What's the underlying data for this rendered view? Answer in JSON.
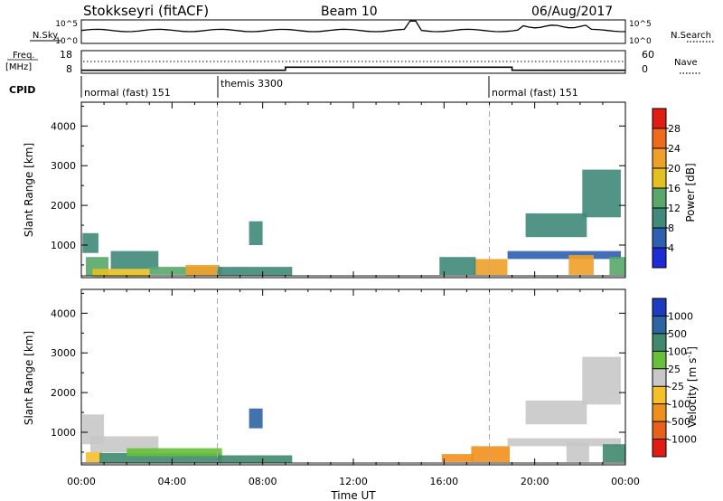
{
  "header": {
    "station": "Stokkseyri (fitACF)",
    "beam": "Beam 10",
    "date": "06/Aug/2017"
  },
  "status_panels": {
    "nsky_label": "N.Sky",
    "nsky_ticks": [
      "10^5",
      "10^0"
    ],
    "nsearch_label": "N.Search",
    "nsearch_ticks": [
      "10^5",
      "10^0"
    ],
    "freq_label_top": "Freq.",
    "freq_label_bottom": "[MHz]",
    "freq_ticks": [
      "18",
      "8"
    ],
    "nave_label": "Nave",
    "nave_ticks": [
      "60",
      "0"
    ],
    "cpid_label": "CPID",
    "cpid_segments": [
      {
        "label": "normal (fast) 151",
        "start_hour": 0,
        "end_hour": 6
      },
      {
        "label": "themis 3300",
        "start_hour": 6,
        "end_hour": 18
      },
      {
        "label": "normal (fast) 151",
        "start_hour": 18,
        "end_hour": 24
      }
    ],
    "nave_steps": [
      {
        "start_hour": 0,
        "end_hour": 9,
        "value": 8
      },
      {
        "start_hour": 9,
        "end_hour": 19,
        "value": 16
      },
      {
        "start_hour": 19,
        "end_hour": 24,
        "value": 8
      }
    ]
  },
  "chart_data": [
    {
      "type": "heatmap",
      "title": "",
      "xlabel": "",
      "ylabel": "Slant Range [km]",
      "xlim": [
        0,
        24
      ],
      "ylim": [
        180,
        4600
      ],
      "yticks": [
        "1000",
        "2000",
        "3000",
        "4000"
      ],
      "colorbar_label": "Power [dB]",
      "colorbar_ticks": [
        "4",
        "8",
        "12",
        "16",
        "20",
        "24",
        "28"
      ],
      "colorbar_range": [
        0,
        30
      ],
      "colors": [
        "#1e2cd6",
        "#2f5fb0",
        "#3f8a7a",
        "#57a86a",
        "#e5c022",
        "#f0a028",
        "#ef6a1c",
        "#e01c14"
      ],
      "patches": [
        {
          "x": [
            0.05,
            0.75
          ],
          "y": [
            800,
            1300
          ],
          "value": 10
        },
        {
          "x": [
            0.2,
            1.2
          ],
          "y": [
            230,
            700
          ],
          "value": 14
        },
        {
          "x": [
            1.3,
            3.4
          ],
          "y": [
            400,
            850
          ],
          "value": 10
        },
        {
          "x": [
            0.5,
            3.0
          ],
          "y": [
            200,
            400
          ],
          "value": 18
        },
        {
          "x": [
            3.0,
            6.2
          ],
          "y": [
            250,
            450
          ],
          "value": 14
        },
        {
          "x": [
            4.6,
            6.1
          ],
          "y": [
            230,
            500
          ],
          "value": 22
        },
        {
          "x": [
            6.0,
            9.3
          ],
          "y": [
            230,
            450
          ],
          "value": 10
        },
        {
          "x": [
            7.4,
            8.0
          ],
          "y": [
            1000,
            1600
          ],
          "value": 10
        },
        {
          "x": [
            17.3,
            18.8
          ],
          "y": [
            250,
            650
          ],
          "value": 22
        },
        {
          "x": [
            15.8,
            17.4
          ],
          "y": [
            250,
            700
          ],
          "value": 8
        },
        {
          "x": [
            18.8,
            23.8
          ],
          "y": [
            650,
            850
          ],
          "value": 7
        },
        {
          "x": [
            19.6,
            22.3
          ],
          "y": [
            1200,
            1800
          ],
          "value": 9
        },
        {
          "x": [
            22.1,
            23.8
          ],
          "y": [
            1700,
            2900
          ],
          "value": 8
        },
        {
          "x": [
            21.5,
            22.6
          ],
          "y": [
            250,
            750
          ],
          "value": 22
        },
        {
          "x": [
            23.3,
            24.0
          ],
          "y": [
            250,
            700
          ],
          "value": 14
        }
      ]
    },
    {
      "type": "heatmap",
      "title": "",
      "xlabel": "Time UT",
      "ylabel": "Slant Range [km]",
      "xlim": [
        0,
        24
      ],
      "ylim": [
        180,
        4600
      ],
      "yticks": [
        "1000",
        "2000",
        "3000",
        "4000"
      ],
      "xticks": [
        "00:00",
        "04:00",
        "08:00",
        "12:00",
        "16:00",
        "20:00",
        "00:00"
      ],
      "colorbar_label": "Velocity [m s^-1]",
      "colorbar_ticks": [
        "1000",
        "500",
        "100",
        "25",
        "-25",
        "-100",
        "-500",
        "-1000"
      ],
      "colorbar_range": [
        -1250,
        1250
      ],
      "colors": [
        "#1a3cc0",
        "#2d64a4",
        "#3f8a6e",
        "#66c03a",
        "#c8c8c8",
        "#f5c02a",
        "#f0901c",
        "#e8601a",
        "#e01c14"
      ],
      "patches": [
        {
          "x": [
            0.05,
            1.0
          ],
          "y": [
            700,
            1450
          ],
          "value": 0
        },
        {
          "x": [
            0.4,
            3.4
          ],
          "y": [
            500,
            900
          ],
          "value": 0
        },
        {
          "x": [
            0.2,
            0.9
          ],
          "y": [
            250,
            500
          ],
          "value": -90
        },
        {
          "x": [
            0.8,
            6.2
          ],
          "y": [
            230,
            480
          ],
          "value": 80
        },
        {
          "x": [
            2.0,
            6.2
          ],
          "y": [
            400,
            600
          ],
          "value": 40
        },
        {
          "x": [
            6.0,
            9.3
          ],
          "y": [
            230,
            420
          ],
          "value": 60
        },
        {
          "x": [
            7.4,
            8.0
          ],
          "y": [
            1100,
            1600
          ],
          "value": 300
        },
        {
          "x": [
            17.2,
            18.9
          ],
          "y": [
            250,
            650
          ],
          "value": -120
        },
        {
          "x": [
            15.9,
            17.3
          ],
          "y": [
            250,
            450
          ],
          "value": -300
        },
        {
          "x": [
            18.8,
            23.8
          ],
          "y": [
            650,
            850
          ],
          "value": 0
        },
        {
          "x": [
            19.6,
            22.3
          ],
          "y": [
            1200,
            1800
          ],
          "value": 0
        },
        {
          "x": [
            22.1,
            23.8
          ],
          "y": [
            1700,
            2900
          ],
          "value": 10
        },
        {
          "x": [
            21.4,
            22.4
          ],
          "y": [
            250,
            750
          ],
          "value": 0
        },
        {
          "x": [
            23.0,
            24.0
          ],
          "y": [
            250,
            700
          ],
          "value": 60
        }
      ]
    }
  ]
}
